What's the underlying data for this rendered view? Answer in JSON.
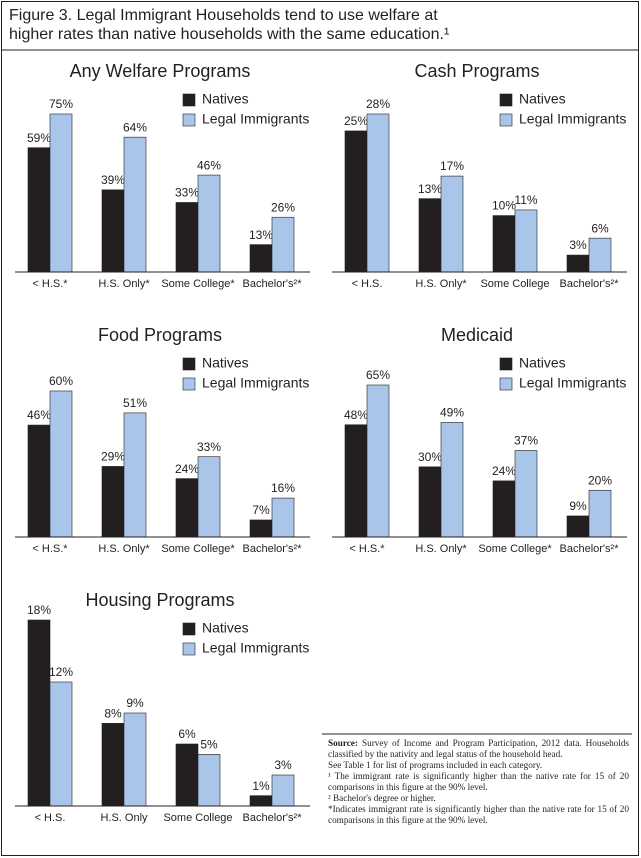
{
  "title": "Figure 3. Legal Immigrant Households tend to use welfare at higher rates than native households with the same education.¹",
  "chart_data": [
    {
      "type": "bar",
      "title": "Any Welfare Programs",
      "categories": [
        "< H.S.*",
        "H.S. Only*",
        "Some College*",
        "Bachelor's²*"
      ],
      "series": [
        {
          "name": "Natives",
          "color": "#231f20",
          "values": [
            59,
            39,
            33,
            13
          ],
          "value_labels": [
            "59%",
            "39%",
            "33%",
            "13%"
          ]
        },
        {
          "name": "Legal Immigrants",
          "color": "#a9c6ea",
          "values": [
            75,
            64,
            46,
            26
          ],
          "value_labels": [
            "75%",
            "64%",
            "46%",
            "26%"
          ]
        }
      ]
    },
    {
      "type": "bar",
      "title": "Cash Programs",
      "categories": [
        "< H.S.",
        "H.S. Only*",
        "Some College",
        "Bachelor's²*"
      ],
      "series": [
        {
          "name": "Natives",
          "color": "#231f20",
          "values": [
            25,
            13,
            10,
            3
          ],
          "value_labels": [
            "25%",
            "13%",
            "10%",
            "3%"
          ]
        },
        {
          "name": "Legal Immigrants",
          "color": "#a9c6ea",
          "values": [
            28,
            17,
            11,
            6
          ],
          "value_labels": [
            "28%",
            "17%",
            "11%",
            "6%"
          ]
        }
      ]
    },
    {
      "type": "bar",
      "title": "Food Programs",
      "categories": [
        "< H.S.*",
        "H.S. Only*",
        "Some College*",
        "Bachelor's²*"
      ],
      "series": [
        {
          "name": "Natives",
          "color": "#231f20",
          "values": [
            46,
            29,
            24,
            7
          ],
          "value_labels": [
            "46%",
            "29%",
            "24%",
            "7%"
          ]
        },
        {
          "name": "Legal Immigrants",
          "color": "#a9c6ea",
          "values": [
            60,
            51,
            33,
            16
          ],
          "value_labels": [
            "60%",
            "51%",
            "33%",
            "16%"
          ]
        }
      ]
    },
    {
      "type": "bar",
      "title": "Medicaid",
      "categories": [
        "< H.S.*",
        "H.S. Only*",
        "Some College*",
        "Bachelor's²*"
      ],
      "series": [
        {
          "name": "Natives",
          "color": "#231f20",
          "values": [
            48,
            30,
            24,
            9
          ],
          "value_labels": [
            "48%",
            "30%",
            "24%",
            "9%"
          ]
        },
        {
          "name": "Legal Immigrants",
          "color": "#a9c6ea",
          "values": [
            65,
            49,
            37,
            20
          ],
          "value_labels": [
            "65%",
            "49%",
            "37%",
            "20%"
          ]
        }
      ]
    },
    {
      "type": "bar",
      "title": "Housing Programs",
      "categories": [
        "< H.S.",
        "H.S. Only",
        "Some College",
        "Bachelor's²*"
      ],
      "series": [
        {
          "name": "Natives",
          "color": "#231f20",
          "values": [
            18,
            8,
            6,
            1
          ],
          "value_labels": [
            "18%",
            "8%",
            "6%",
            "1%"
          ]
        },
        {
          "name": "Legal Immigrants",
          "color": "#a9c6ea",
          "values": [
            12,
            9,
            5,
            3
          ],
          "value_labels": [
            "12%",
            "9%",
            "5%",
            "3%"
          ]
        }
      ]
    }
  ],
  "notes": {
    "source_label": "Source:",
    "source_text": "Survey of Income and Program Participation, 2012 data. Households classified by the nativity and legal status of the household head.",
    "lines": [
      "See Table 1 for list of programs included in each category.",
      "¹ The immigrant rate is significantly higher than the native rate for 15 of 20 comparisons in this figure at the 90% level.",
      "² Bachelor's degree or higher.",
      "*Indicates immigrant rate is significantly higher than the native rate for 15 of 20 comparisons in this figure at the 90% level."
    ]
  }
}
